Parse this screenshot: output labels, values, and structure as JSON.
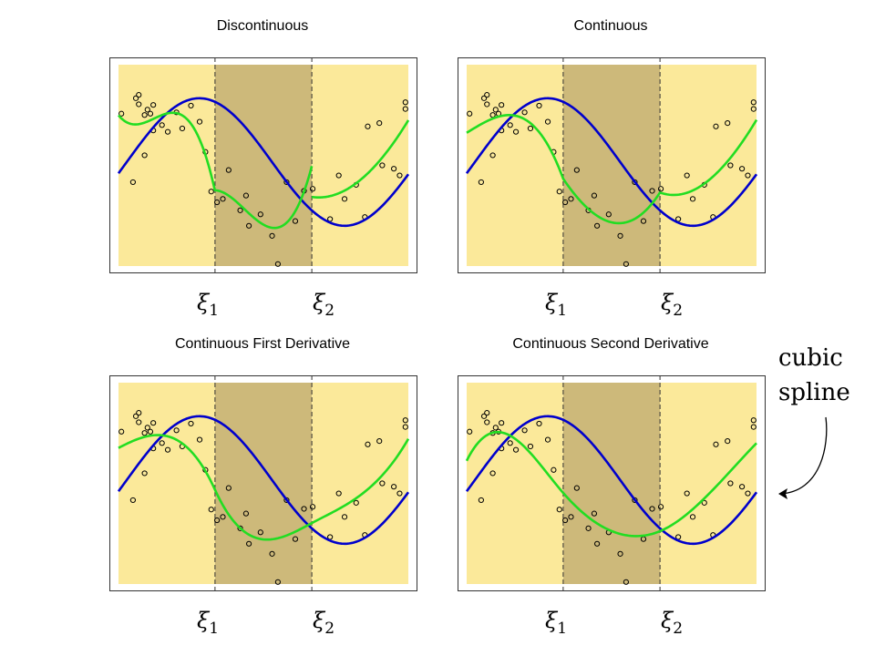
{
  "chart_data": [
    {
      "type": "scatter",
      "title": "Discontinuous",
      "knot_labels": [
        "ξ1",
        "ξ2"
      ],
      "knots": [
        0.333,
        0.667
      ],
      "xlim": [
        0,
        1
      ],
      "ylim": [
        -1.55,
        1.45
      ],
      "points_series": "observations",
      "series": [
        {
          "name": "",
          "color": "#0000cc",
          "kind": "true-function"
        },
        {
          "name": "",
          "color": "#22dd22",
          "kind": "piecewise-cubic",
          "continuity": "none"
        }
      ]
    },
    {
      "type": "scatter",
      "title": "Continuous",
      "knot_labels": [
        "ξ1",
        "ξ2"
      ],
      "knots": [
        0.333,
        0.667
      ],
      "xlim": [
        0,
        1
      ],
      "ylim": [
        -1.55,
        1.45
      ],
      "series": [
        {
          "name": "",
          "color": "#0000cc",
          "kind": "true-function"
        },
        {
          "name": "",
          "color": "#22dd22",
          "kind": "piecewise-cubic",
          "continuity": "continuous"
        }
      ]
    },
    {
      "type": "scatter",
      "title": "Continuous First Derivative",
      "knot_labels": [
        "ξ1",
        "ξ2"
      ],
      "knots": [
        0.333,
        0.667
      ],
      "xlim": [
        0,
        1
      ],
      "ylim": [
        -1.55,
        1.45
      ],
      "series": [
        {
          "name": "",
          "color": "#0000cc",
          "kind": "true-function"
        },
        {
          "name": "",
          "color": "#22dd22",
          "kind": "piecewise-cubic",
          "continuity": "first-derivative"
        }
      ]
    },
    {
      "type": "scatter",
      "title": "Continuous Second Derivative",
      "knot_labels": [
        "ξ1",
        "ξ2"
      ],
      "knots": [
        0.333,
        0.667
      ],
      "xlim": [
        0,
        1
      ],
      "ylim": [
        -1.55,
        1.45
      ],
      "series": [
        {
          "name": "",
          "color": "#0000cc",
          "kind": "true-function"
        },
        {
          "name": "",
          "color": "#22dd22",
          "kind": "piecewise-cubic",
          "continuity": "second-derivative"
        }
      ]
    }
  ],
  "observations": {
    "x": [
      0.01,
      0.05,
      0.06,
      0.07,
      0.07,
      0.09,
      0.09,
      0.1,
      0.11,
      0.12,
      0.12,
      0.15,
      0.17,
      0.2,
      0.22,
      0.25,
      0.28,
      0.3,
      0.32,
      0.34,
      0.36,
      0.38,
      0.42,
      0.44,
      0.45,
      0.49,
      0.53,
      0.55,
      0.58,
      0.61,
      0.64,
      0.67,
      0.73,
      0.76,
      0.78,
      0.82,
      0.85,
      0.86,
      0.9,
      0.91,
      0.95,
      0.97,
      0.99,
      0.99
    ],
    "y": [
      0.72,
      -0.3,
      0.95,
      1.0,
      0.86,
      0.7,
      0.1,
      0.78,
      0.72,
      0.85,
      0.47,
      0.55,
      0.45,
      0.74,
      0.5,
      0.84,
      0.6,
      0.15,
      -0.44,
      -0.6,
      -0.55,
      -0.12,
      -0.72,
      -0.5,
      -0.95,
      -0.78,
      -1.1,
      -1.52,
      -0.3,
      -0.88,
      -0.43,
      -0.4,
      -0.85,
      -0.2,
      -0.55,
      -0.34,
      -0.82,
      0.53,
      0.58,
      -0.05,
      -0.1,
      -0.2,
      0.79,
      0.89
    ],
    "x_round": [
      0.01,
      0.05,
      0.06,
      0.07,
      0.07,
      0.09,
      0.09,
      0.1,
      0.11,
      0.12,
      0.12,
      0.15,
      0.17,
      0.2,
      0.22,
      0.25,
      0.28,
      0.3,
      0.32,
      0.34,
      0.36,
      0.38,
      0.42,
      0.44,
      0.45,
      0.49,
      0.53,
      0.55,
      0.58,
      0.61,
      0.64,
      0.67,
      0.73,
      0.76,
      0.78,
      0.82,
      0.85,
      0.86,
      0.9,
      0.91,
      0.95,
      0.97,
      0.99,
      0.99
    ]
  },
  "annotation": {
    "line1": "cubic",
    "line2": "spline"
  },
  "colors": {
    "outer_region": "#fbe99a",
    "inner_region": "#cdb97a",
    "true_function": "#0000cc",
    "fit": "#22dd22",
    "knot_line": "#333333"
  }
}
